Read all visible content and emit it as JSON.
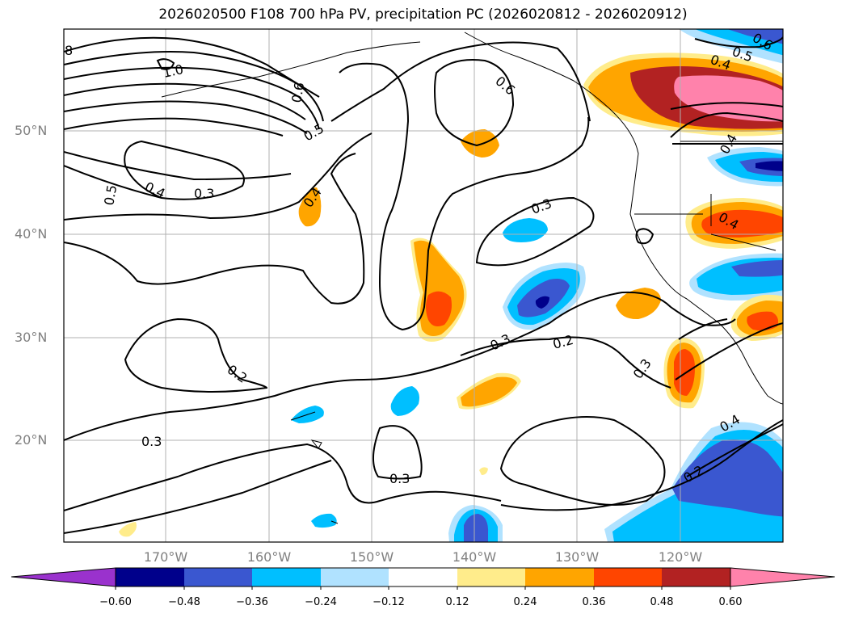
{
  "title": "2026020500 F108 700 hPa PV, precipitation PC (2026020812 - 2026020912)",
  "map": {
    "lat_labels": [
      "50°N",
      "40°N",
      "30°N",
      "20°N"
    ],
    "lon_labels": [
      "170°W",
      "160°W",
      "150°W",
      "140°W",
      "130°W",
      "120°W"
    ],
    "contour_labels": [
      "8",
      "1.0",
      "0.6",
      "0.5",
      "0.5",
      "0.4",
      "0.3",
      "0.4",
      "0.6",
      "0.3",
      "0.3",
      "0.2",
      "0.3",
      "0.2",
      "0.3",
      "0.3",
      "0.4",
      "0.2",
      "0.5",
      "0.4",
      "0.4",
      "0.4",
      "0.6"
    ]
  },
  "colorbar": {
    "ticks": [
      "−0.60",
      "−0.48",
      "−0.36",
      "−0.24",
      "−0.12",
      "0.12",
      "0.24",
      "0.36",
      "0.48",
      "0.60"
    ],
    "colors": [
      "#9a32cd",
      "#00008b",
      "#3a57d0",
      "#00bfff",
      "#b0e2ff",
      "#ffffff",
      "#ffec8b",
      "#ffa500",
      "#ff4500",
      "#b22222",
      "#ff82ab"
    ]
  }
}
